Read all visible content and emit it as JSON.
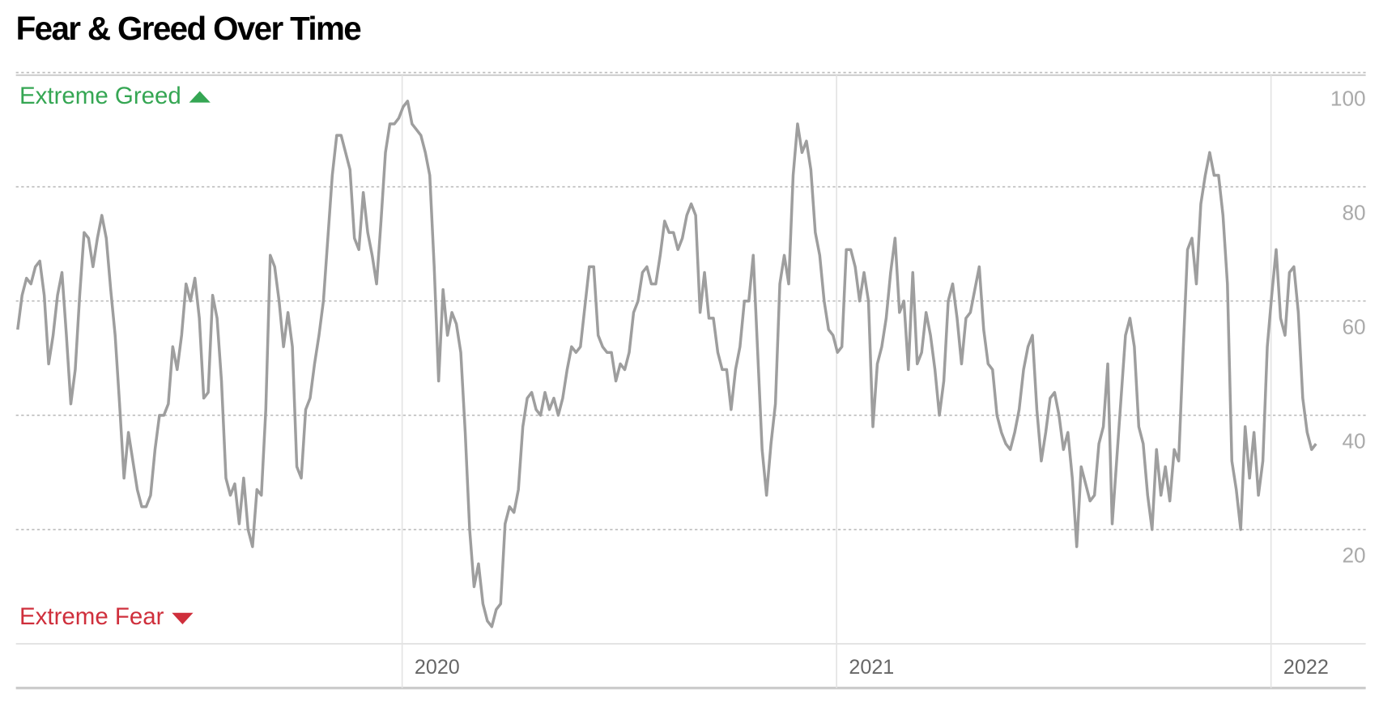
{
  "chart_data": {
    "type": "line",
    "title": "Fear & Greed Over Time",
    "annotations": [
      {
        "text": "Extreme Greed",
        "color": "#35a653"
      },
      {
        "text": "Extreme Fear",
        "color": "#cf2f3c"
      }
    ],
    "xlim": [
      2019.111,
      2022.218
    ],
    "xticks": [
      2020,
      2021,
      2022
    ],
    "ylim": [
      0,
      100
    ],
    "yticks": [
      20,
      40,
      60,
      80,
      100
    ],
    "grid": true,
    "x": [
      2019.115,
      2019.1252,
      2019.1354,
      2019.1456,
      2019.1558,
      2019.166,
      2019.1762,
      2019.1864,
      2019.1966,
      2019.2068,
      2019.217,
      2019.2272,
      2019.2374,
      2019.2476,
      2019.2578,
      2019.268,
      2019.2782,
      2019.2884,
      2019.2986,
      2019.3088,
      2019.319,
      2019.3292,
      2019.3394,
      2019.3496,
      2019.3598,
      2019.37,
      2019.3802,
      2019.3904,
      2019.4006,
      2019.4108,
      2019.421,
      2019.4312,
      2019.4414,
      2019.4516,
      2019.4618,
      2019.472,
      2019.4822,
      2019.4924,
      2019.5026,
      2019.5128,
      2019.523,
      2019.5332,
      2019.5434,
      2019.5536,
      2019.5638,
      2019.574,
      2019.5842,
      2019.5944,
      2019.6046,
      2019.6148,
      2019.625,
      2019.6352,
      2019.6454,
      2019.6556,
      2019.6658,
      2019.676,
      2019.6862,
      2019.6964,
      2019.7066,
      2019.7168,
      2019.727,
      2019.7372,
      2019.7474,
      2019.7576,
      2019.7678,
      2019.778,
      2019.7882,
      2019.7984,
      2019.8086,
      2019.8188,
      2019.829,
      2019.8392,
      2019.8494,
      2019.8596,
      2019.8698,
      2019.88,
      2019.8902,
      2019.9004,
      2019.9106,
      2019.9208,
      2019.931,
      2019.9412,
      2019.9514,
      2019.9616,
      2019.9718,
      2019.982,
      2019.9922,
      2020.0024,
      2020.0126,
      2020.0228,
      2020.033,
      2020.0432,
      2020.0534,
      2020.0636,
      2020.0738,
      2020.084,
      2020.0942,
      2020.1044,
      2020.1146,
      2020.1248,
      2020.135,
      2020.1452,
      2020.1554,
      2020.1656,
      2020.1758,
      2020.186,
      2020.1962,
      2020.2064,
      2020.2166,
      2020.2268,
      2020.237,
      2020.2472,
      2020.2574,
      2020.2676,
      2020.2778,
      2020.288,
      2020.2982,
      2020.3084,
      2020.3186,
      2020.3288,
      2020.339,
      2020.3492,
      2020.3594,
      2020.3696,
      2020.3798,
      2020.39,
      2020.4002,
      2020.4104,
      2020.4206,
      2020.4308,
      2020.441,
      2020.4512,
      2020.4614,
      2020.4716,
      2020.4818,
      2020.492,
      2020.5022,
      2020.5124,
      2020.5226,
      2020.5328,
      2020.543,
      2020.5532,
      2020.5634,
      2020.5736,
      2020.5838,
      2020.594,
      2020.6042,
      2020.6144,
      2020.6246,
      2020.6348,
      2020.645,
      2020.6552,
      2020.6654,
      2020.6756,
      2020.6858,
      2020.696,
      2020.7062,
      2020.7164,
      2020.7266,
      2020.7368,
      2020.747,
      2020.7572,
      2020.7674,
      2020.7776,
      2020.7878,
      2020.798,
      2020.8082,
      2020.8184,
      2020.8286,
      2020.8388,
      2020.849,
      2020.8592,
      2020.8694,
      2020.8796,
      2020.8898,
      2020.9,
      2020.9102,
      2020.9204,
      2020.9306,
      2020.9408,
      2020.951,
      2020.9612,
      2020.9714,
      2020.9816,
      2020.9918,
      2021.002,
      2021.0122,
      2021.0224,
      2021.0326,
      2021.0428,
      2021.053,
      2021.0632,
      2021.0734,
      2021.0836,
      2021.0938,
      2021.104,
      2021.1142,
      2021.1244,
      2021.1346,
      2021.1448,
      2021.155,
      2021.1652,
      2021.1754,
      2021.1856,
      2021.1958,
      2021.206,
      2021.2162,
      2021.2264,
      2021.2366,
      2021.2468,
      2021.257,
      2021.2672,
      2021.2774,
      2021.2876,
      2021.2978,
      2021.308,
      2021.3182,
      2021.3284,
      2021.3386,
      2021.3488,
      2021.359,
      2021.3692,
      2021.3794,
      2021.3896,
      2021.3998,
      2021.41,
      2021.4202,
      2021.4304,
      2021.4406,
      2021.4508,
      2021.461,
      2021.4712,
      2021.4814,
      2021.4916,
      2021.5018,
      2021.512,
      2021.5222,
      2021.5324,
      2021.5426,
      2021.5528,
      2021.563,
      2021.5732,
      2021.5834,
      2021.5936,
      2021.6038,
      2021.614,
      2021.6242,
      2021.6344,
      2021.6446,
      2021.6548,
      2021.665,
      2021.6752,
      2021.6854,
      2021.6956,
      2021.7058,
      2021.716,
      2021.7262,
      2021.7364,
      2021.7466,
      2021.7568,
      2021.767,
      2021.7772,
      2021.7874,
      2021.7976,
      2021.8078,
      2021.818,
      2021.8282,
      2021.8384,
      2021.8486,
      2021.8588,
      2021.869,
      2021.8792,
      2021.8894,
      2021.8996,
      2021.9098,
      2021.92,
      2021.9302,
      2021.9404,
      2021.9506,
      2021.9608,
      2021.971,
      2021.9812,
      2021.9914,
      2022.0016,
      2022.0118,
      2022.022,
      2022.0322,
      2022.0424,
      2022.0526,
      2022.0628,
      2022.073,
      2022.0832,
      2022.0934,
      2022.1036
    ],
    "series": [
      {
        "color": "#9e9e9e",
        "values": [
          55,
          61,
          64,
          63,
          66,
          67,
          61,
          49,
          54,
          61,
          65,
          54,
          42,
          48,
          61,
          72,
          71,
          66,
          71,
          75,
          71,
          62,
          54,
          42,
          29,
          37,
          32,
          27,
          24,
          24,
          26,
          34,
          40,
          40,
          42,
          52,
          48,
          54,
          63,
          60,
          64,
          57,
          43,
          44,
          61,
          57,
          46,
          29,
          26,
          28,
          21,
          29,
          20,
          17,
          27,
          26,
          41,
          68,
          66,
          60,
          52,
          58,
          52,
          31,
          29,
          41,
          43,
          49,
          54,
          60,
          71,
          82,
          89,
          89,
          86,
          83,
          71,
          69,
          79,
          72,
          68,
          63,
          74,
          86,
          91,
          91,
          92,
          94,
          95,
          91,
          90,
          89,
          86,
          82,
          66,
          46,
          62,
          54,
          58,
          56,
          51,
          37,
          20,
          10,
          14,
          7,
          4,
          3,
          6,
          7,
          21,
          24,
          23,
          27,
          38,
          43,
          44,
          41,
          40,
          44,
          41,
          43,
          40,
          43,
          48,
          52,
          51,
          52,
          59,
          66,
          66,
          54,
          52,
          51,
          51,
          46,
          49,
          48,
          51,
          58,
          60,
          65,
          66,
          63,
          63,
          68,
          74,
          72,
          72,
          69,
          71,
          75,
          77,
          75,
          58,
          65,
          57,
          57,
          51,
          48,
          48,
          41,
          48,
          52,
          60,
          60,
          68,
          51,
          34,
          26,
          35,
          42,
          63,
          68,
          63,
          82,
          91,
          86,
          88,
          83,
          72,
          68,
          60,
          55,
          54,
          51,
          52,
          69,
          69,
          66,
          60,
          65,
          60,
          38,
          49,
          52,
          57,
          65,
          71,
          58,
          60,
          48,
          65,
          49,
          51,
          58,
          54,
          48,
          40,
          46,
          60,
          63,
          57,
          49,
          57,
          58,
          62,
          66,
          55,
          49,
          48,
          40,
          37,
          35,
          34,
          37,
          41,
          48,
          52,
          54,
          41,
          32,
          37,
          43,
          44,
          40,
          34,
          37,
          29,
          17,
          31,
          28,
          25,
          26,
          35,
          38,
          49,
          21,
          32,
          43,
          54,
          57,
          52,
          38,
          35,
          26,
          20,
          34,
          26,
          31,
          25,
          34,
          32,
          51,
          69,
          71,
          63,
          77,
          82,
          86,
          82,
          82,
          75,
          63,
          32,
          27,
          20,
          38,
          29,
          37,
          26,
          32,
          52,
          61,
          69,
          57,
          54,
          65,
          66,
          58,
          43,
          37,
          34,
          35
        ]
      }
    ]
  }
}
